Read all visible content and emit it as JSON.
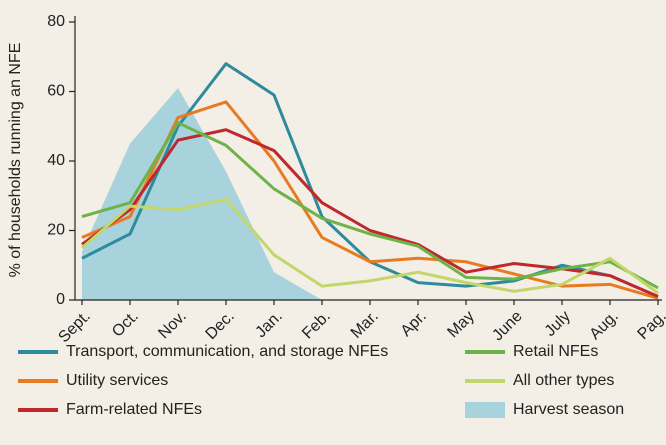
{
  "chart_data": {
    "type": "line",
    "y_label": "% of households running an NFE",
    "categories": [
      "Sept.",
      "Oct.",
      "Nov.",
      "Dec.",
      "Jan.",
      "Feb.",
      "Mar.",
      "Apr.",
      "May",
      "June",
      "July",
      "Aug.",
      "Pag."
    ],
    "ylim": [
      0,
      80
    ],
    "yticks": [
      0,
      20,
      40,
      60,
      80
    ],
    "series": [
      {
        "name": "Transport, communication, and storage NFEs",
        "color": "#2e8b9b",
        "values": [
          12,
          19,
          50,
          68,
          59,
          24,
          11,
          5,
          4,
          5.5,
          10,
          7,
          1
        ]
      },
      {
        "name": "Utility services",
        "color": "#e87b22",
        "values": [
          18,
          24,
          52.5,
          57,
          40,
          18,
          11,
          12,
          11,
          7.5,
          4,
          4.5,
          0.5
        ]
      },
      {
        "name": "Farm-related NFEs",
        "color": "#c0282d",
        "values": [
          16,
          26,
          46,
          49,
          43,
          28,
          20,
          16,
          8,
          10.5,
          9,
          7,
          1
        ]
      },
      {
        "name": "Retail NFEs",
        "color": "#6db34a",
        "values": [
          24,
          28,
          51,
          44.5,
          32,
          23.5,
          19,
          15.5,
          6.5,
          6,
          9,
          11,
          3.5
        ]
      },
      {
        "name": "All other types",
        "color": "#c2d76a",
        "values": [
          15,
          27,
          26,
          29,
          13,
          4,
          5.5,
          8,
          5,
          2.5,
          4.5,
          12,
          2
        ]
      },
      {
        "name": "Harvest season",
        "color": "#a8d3dc",
        "type": "area",
        "values": [
          14,
          45,
          61,
          37,
          8,
          0,
          null,
          null,
          null,
          null,
          null,
          null,
          null
        ]
      }
    ]
  }
}
